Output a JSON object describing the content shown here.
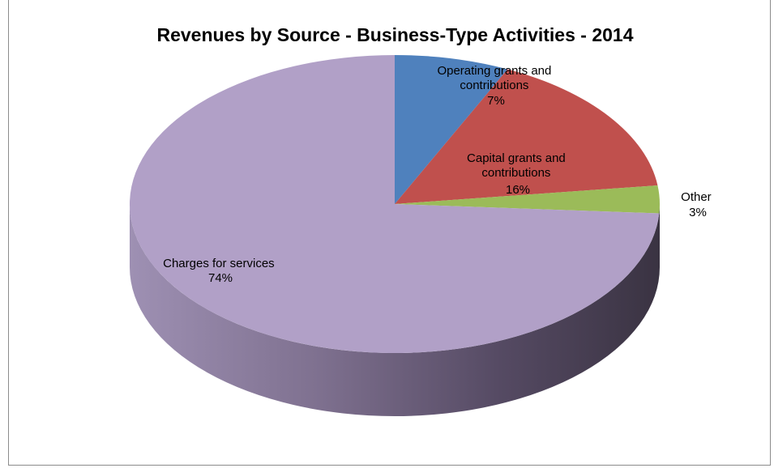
{
  "chart_data": {
    "type": "pie",
    "title": "Revenues by Source - Business-Type Activities - 2014",
    "slices": [
      {
        "label_lines": [
          "Operating grants and",
          "contributions"
        ],
        "percent_label": "7%",
        "value": 7,
        "color": "#4f81bd"
      },
      {
        "label_lines": [
          "Capital grants and",
          "contributions"
        ],
        "percent_label": "16%",
        "value": 16,
        "color": "#c0504d"
      },
      {
        "label_lines": [
          "Other"
        ],
        "percent_label": "3%",
        "value": 3,
        "color": "#9bbb59"
      },
      {
        "label_lines": [
          "Charges for services"
        ],
        "percent_label": "74%",
        "value": 74,
        "color": "#b1a0c7"
      }
    ],
    "style": "3d-pie",
    "legend": "none"
  }
}
